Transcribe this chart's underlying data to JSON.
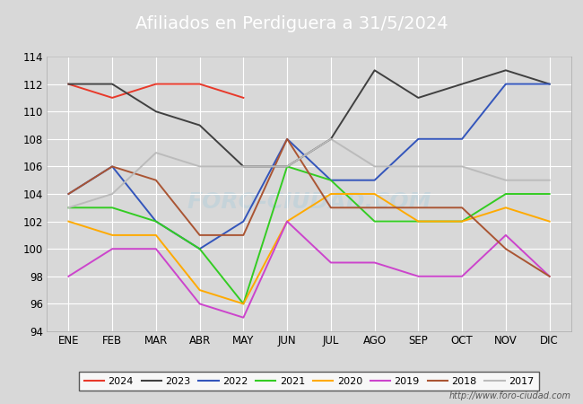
{
  "title": "Afiliados en Perdiguera a 31/5/2024",
  "ylim": [
    94,
    114
  ],
  "yticks": [
    94,
    96,
    98,
    100,
    102,
    104,
    106,
    108,
    110,
    112,
    114
  ],
  "months": [
    "ENE",
    "FEB",
    "MAR",
    "ABR",
    "MAY",
    "JUN",
    "JUL",
    "AGO",
    "SEP",
    "OCT",
    "NOV",
    "DIC"
  ],
  "series": {
    "2024": {
      "color": "#e8392a",
      "data": [
        112,
        111,
        112,
        112,
        111,
        null,
        null,
        null,
        null,
        null,
        null,
        null
      ]
    },
    "2023": {
      "color": "#404040",
      "data": [
        112,
        112,
        110,
        109,
        106,
        106,
        108,
        113,
        111,
        112,
        113,
        112
      ]
    },
    "2022": {
      "color": "#3355bb",
      "data": [
        104,
        106,
        102,
        100,
        102,
        108,
        105,
        105,
        108,
        108,
        112,
        112
      ]
    },
    "2021": {
      "color": "#33cc22",
      "data": [
        103,
        103,
        102,
        100,
        96,
        106,
        105,
        102,
        102,
        102,
        104,
        104
      ]
    },
    "2020": {
      "color": "#ffaa00",
      "data": [
        102,
        101,
        101,
        97,
        96,
        102,
        104,
        104,
        102,
        102,
        103,
        102
      ]
    },
    "2019": {
      "color": "#cc44cc",
      "data": [
        98,
        100,
        100,
        96,
        95,
        102,
        99,
        99,
        98,
        98,
        101,
        98
      ]
    },
    "2018": {
      "color": "#aa5533",
      "data": [
        104,
        106,
        105,
        101,
        101,
        108,
        103,
        103,
        103,
        103,
        100,
        98
      ]
    },
    "2017": {
      "color": "#bbbbbb",
      "data": [
        103,
        104,
        107,
        106,
        106,
        106,
        108,
        106,
        106,
        106,
        105,
        105
      ]
    }
  },
  "watermark": "FORO-CIUDAD.COM",
  "url": "http://www.foro-ciudad.com",
  "header_bg_color": "#5588bb",
  "fig_bg_color": "#d8d8d8",
  "plot_bg_color": "#d8d8d8",
  "grid_color": "#ffffff",
  "title_color": "#ffffff",
  "title_fontsize": 14
}
